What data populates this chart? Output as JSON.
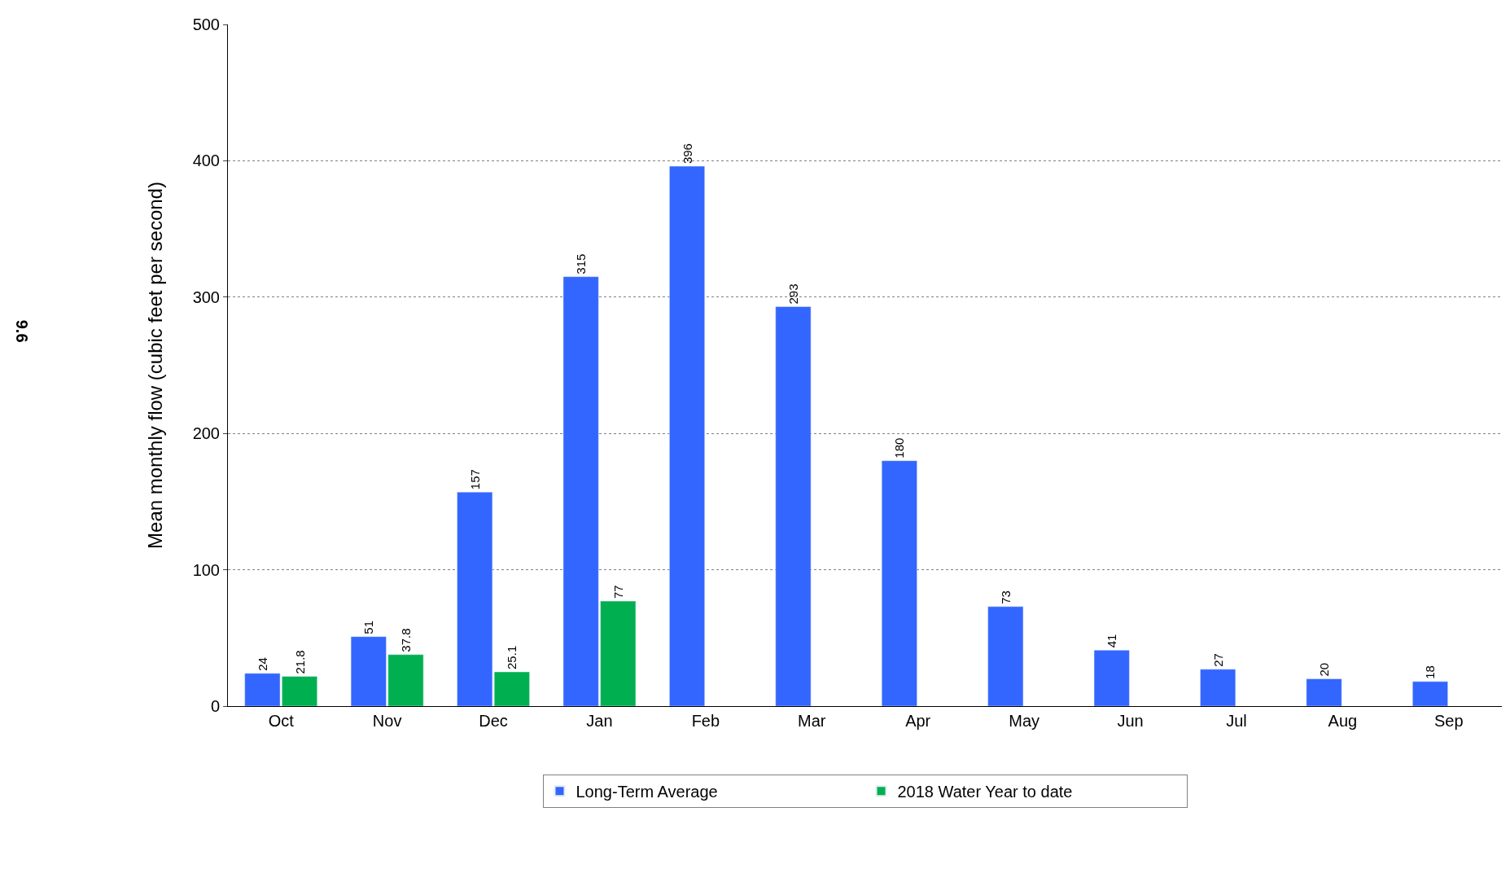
{
  "chart_data": {
    "type": "bar",
    "ylabel": "Mean monthly flow (cubic feet per second)",
    "categories": [
      "Oct",
      "Nov",
      "Dec",
      "Jan",
      "Feb",
      "Mar",
      "Apr",
      "May",
      "Jun",
      "Jul",
      "Aug",
      "Sep"
    ],
    "series": [
      {
        "name": "Long-Term Average",
        "color": "#3366ff",
        "values": [
          24,
          51,
          157,
          315,
          396,
          293,
          180,
          73,
          41,
          27,
          20,
          18
        ],
        "value_labels": [
          "24",
          "51",
          "157",
          "315",
          "396",
          "293",
          "180",
          "73",
          "41",
          "27",
          "20",
          "18"
        ]
      },
      {
        "name": "2018 Water Year to date",
        "color": "#00b050",
        "values": [
          21.8,
          37.8,
          25.1,
          77,
          null,
          null,
          null,
          null,
          null,
          null,
          null,
          null
        ],
        "value_labels": [
          "21.8",
          "37.8",
          "25.1",
          "77",
          null,
          null,
          null,
          null,
          null,
          null,
          null,
          null
        ]
      }
    ],
    "ylim": [
      0,
      500
    ],
    "yticks": [
      0,
      100,
      200,
      300,
      400,
      500
    ],
    "grid": "y",
    "legend": "bottom",
    "annotations": [
      "9.6"
    ]
  }
}
